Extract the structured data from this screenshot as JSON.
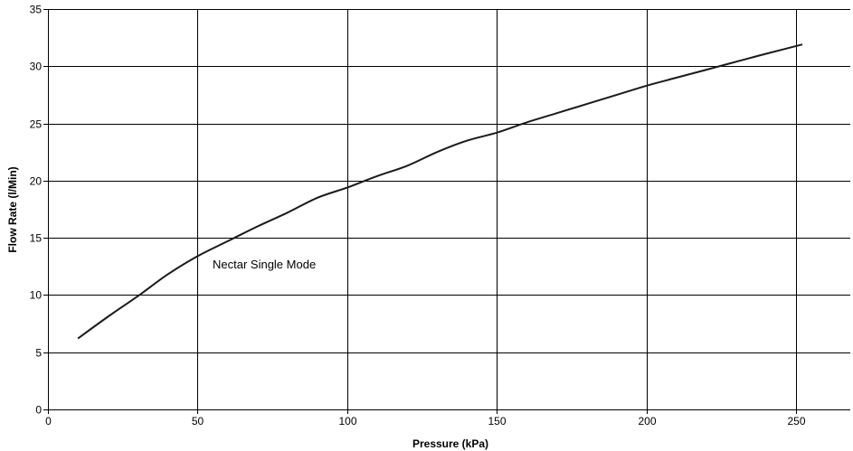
{
  "chart_data": {
    "type": "line",
    "xlabel": "Pressure (kPa)",
    "ylabel": "Flow Rate (l/Min)",
    "xlim": [
      0,
      268
    ],
    "ylim": [
      0,
      35
    ],
    "xticks": [
      0,
      50,
      100,
      150,
      200,
      250
    ],
    "yticks": [
      0,
      5,
      10,
      15,
      20,
      25,
      30,
      35
    ],
    "grid": true,
    "annotation": "Nectar Single Mode",
    "series": [
      {
        "x": [
          10,
          20,
          30,
          40,
          50,
          60,
          70,
          80,
          90,
          100,
          110,
          120,
          130,
          140,
          150,
          160,
          170,
          180,
          190,
          200,
          210,
          220,
          230,
          240,
          252
        ],
        "y": [
          6.2,
          8.1,
          9.9,
          11.8,
          13.4,
          14.7,
          16.0,
          17.2,
          18.5,
          19.4,
          20.4,
          21.3,
          22.5,
          23.5,
          24.2,
          25.1,
          25.9,
          26.7,
          27.5,
          28.3,
          29.0,
          29.7,
          30.4,
          31.1,
          31.9
        ]
      }
    ],
    "colors": {
      "line": "#1a1a1a",
      "grid": "#000000",
      "background": "#ffffff"
    }
  }
}
